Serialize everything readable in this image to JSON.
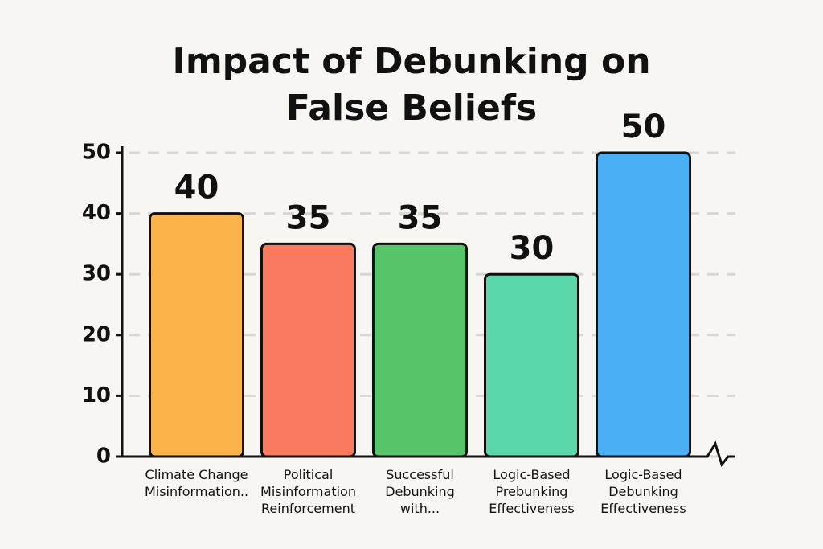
{
  "chart_data": {
    "type": "bar",
    "title": "Impact of Debunking on False Beliefs",
    "categories": [
      "Climate Change Misinformation..",
      "Political Misinformation Reinforcement",
      "Successful Debunking with...",
      "Logic-Based Prebunking Effectiveness",
      "Logic-Based Debunking Effectiveness"
    ],
    "values": [
      40,
      35,
      35,
      30,
      50
    ],
    "colors": [
      "#fbb34a",
      "#f97a5e",
      "#58c46a",
      "#5bd8aa",
      "#4ab0f5"
    ],
    "ylim": [
      0,
      50
    ],
    "yticks": [
      0,
      10,
      20,
      30,
      40,
      50
    ],
    "grid": true
  }
}
